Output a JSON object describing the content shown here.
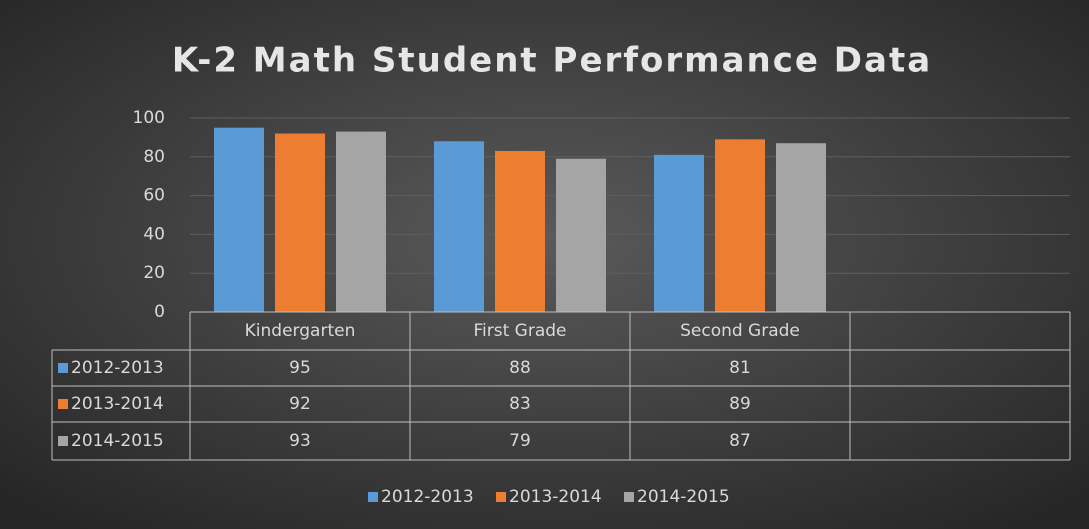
{
  "chart_data": {
    "type": "bar",
    "title": "K-2 Math Student Performance Data",
    "categories": [
      "Kindergarten",
      "First Grade",
      "Second Grade",
      null
    ],
    "series": [
      {
        "name": "2012-2013",
        "color": "#5b9bd5",
        "values": [
          95,
          88,
          81,
          null
        ]
      },
      {
        "name": "2013-2014",
        "color": "#ed7d31",
        "values": [
          92,
          83,
          89,
          null
        ]
      },
      {
        "name": "2014-2015",
        "color": "#a5a5a5",
        "values": [
          93,
          79,
          87,
          null
        ]
      }
    ],
    "ylim": [
      0,
      100
    ],
    "yticks": [
      0,
      20,
      40,
      60,
      80,
      100
    ],
    "grid": true,
    "data_table": true,
    "legend": "bottom"
  }
}
